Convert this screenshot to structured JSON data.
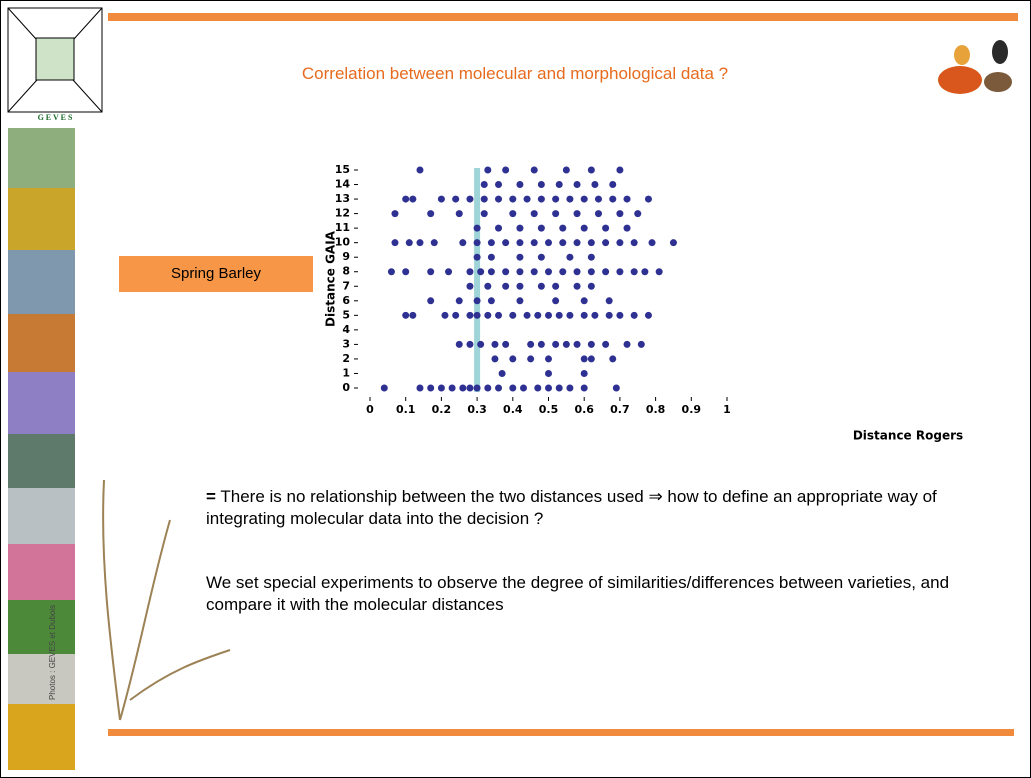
{
  "logo": {
    "letters": "G E V E S"
  },
  "title": "Correlation between molecular and morphological data ?",
  "label": "Spring Barley",
  "paragraphs": [
    {
      "bullet": "=",
      "text": "There is no relationship between the two distances used ⇒ how to define an appropriate way of integrating molecular data into the decision ?"
    },
    {
      "text": "We set special experiments to observe the degree of similarities/differences between varieties, and compare it with the molecular distances"
    }
  ],
  "photo_credit": "Photos : GEVES et Dubois",
  "chart_data": {
    "type": "scatter",
    "color": "#2e3192",
    "xlabel": "Distance Rogers",
    "ylabel": "Distance GAIA",
    "xlim": [
      0,
      1
    ],
    "ylim": [
      0,
      15
    ],
    "xticks": [
      0,
      0.1,
      0.2,
      0.3,
      0.4,
      0.5,
      0.6,
      0.7,
      0.8,
      0.9,
      1
    ],
    "yticks": [
      0,
      1,
      2,
      3,
      4,
      5,
      6,
      7,
      8,
      9,
      10,
      11,
      12,
      13,
      14,
      15
    ],
    "reference_line": {
      "x": 0.3,
      "color": "#9fd4d8"
    },
    "x": [
      0.04,
      0.14,
      0.17,
      0.2,
      0.23,
      0.26,
      0.28,
      0.3,
      0.33,
      0.36,
      0.4,
      0.43,
      0.47,
      0.5,
      0.53,
      0.56,
      0.6,
      0.69,
      0.37,
      0.5,
      0.6,
      0.35,
      0.4,
      0.45,
      0.5,
      0.6,
      0.62,
      0.68,
      0.25,
      0.28,
      0.31,
      0.35,
      0.38,
      0.45,
      0.48,
      0.52,
      0.55,
      0.58,
      0.62,
      0.66,
      0.72,
      0.76,
      0.1,
      0.12,
      0.21,
      0.24,
      0.28,
      0.3,
      0.33,
      0.36,
      0.4,
      0.44,
      0.47,
      0.5,
      0.53,
      0.56,
      0.6,
      0.63,
      0.67,
      0.7,
      0.74,
      0.78,
      0.17,
      0.25,
      0.3,
      0.34,
      0.42,
      0.52,
      0.6,
      0.67,
      0.28,
      0.33,
      0.38,
      0.42,
      0.48,
      0.52,
      0.58,
      0.62,
      0.06,
      0.1,
      0.17,
      0.22,
      0.28,
      0.31,
      0.34,
      0.38,
      0.42,
      0.46,
      0.5,
      0.54,
      0.58,
      0.62,
      0.66,
      0.7,
      0.74,
      0.77,
      0.81,
      0.3,
      0.34,
      0.42,
      0.48,
      0.56,
      0.62,
      0.07,
      0.11,
      0.14,
      0.18,
      0.26,
      0.3,
      0.34,
      0.38,
      0.42,
      0.46,
      0.5,
      0.54,
      0.58,
      0.62,
      0.66,
      0.7,
      0.74,
      0.79,
      0.85,
      0.3,
      0.36,
      0.42,
      0.48,
      0.54,
      0.6,
      0.66,
      0.72,
      0.07,
      0.17,
      0.25,
      0.32,
      0.4,
      0.46,
      0.52,
      0.58,
      0.64,
      0.7,
      0.75,
      0.1,
      0.12,
      0.2,
      0.24,
      0.28,
      0.32,
      0.36,
      0.4,
      0.44,
      0.48,
      0.52,
      0.56,
      0.6,
      0.64,
      0.68,
      0.72,
      0.78,
      0.32,
      0.36,
      0.42,
      0.48,
      0.53,
      0.58,
      0.63,
      0.68,
      0.14,
      0.33,
      0.38,
      0.46,
      0.55,
      0.62,
      0.7
    ],
    "values": [
      0,
      0,
      0,
      0,
      0,
      0,
      0,
      0,
      0,
      0,
      0,
      0,
      0,
      0,
      0,
      0,
      0,
      0,
      1,
      1,
      1,
      2,
      2,
      2,
      2,
      2,
      2,
      2,
      3,
      3,
      3,
      3,
      3,
      3,
      3,
      3,
      3,
      3,
      3,
      3,
      3,
      3,
      5,
      5,
      5,
      5,
      5,
      5,
      5,
      5,
      5,
      5,
      5,
      5,
      5,
      5,
      5,
      5,
      5,
      5,
      5,
      5,
      6,
      6,
      6,
      6,
      6,
      6,
      6,
      6,
      7,
      7,
      7,
      7,
      7,
      7,
      7,
      7,
      8,
      8,
      8,
      8,
      8,
      8,
      8,
      8,
      8,
      8,
      8,
      8,
      8,
      8,
      8,
      8,
      8,
      8,
      8,
      9,
      9,
      9,
      9,
      9,
      9,
      10,
      10,
      10,
      10,
      10,
      10,
      10,
      10,
      10,
      10,
      10,
      10,
      10,
      10,
      10,
      10,
      10,
      10,
      10,
      11,
      11,
      11,
      11,
      11,
      11,
      11,
      11,
      12,
      12,
      12,
      12,
      12,
      12,
      12,
      12,
      12,
      12,
      12,
      13,
      13,
      13,
      13,
      13,
      13,
      13,
      13,
      13,
      13,
      13,
      13,
      13,
      13,
      13,
      13,
      13,
      14,
      14,
      14,
      14,
      14,
      14,
      14,
      14,
      15,
      15,
      15,
      15,
      15,
      15,
      15
    ]
  }
}
